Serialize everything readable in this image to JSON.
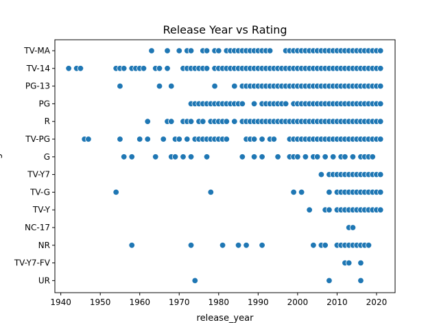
{
  "chart_data": {
    "type": "scatter",
    "title": "Release Year vs Rating",
    "xlabel": "release_year",
    "ylabel": "rating",
    "xlim": [
      1938.5,
      2024.7
    ],
    "xticks": [
      1940,
      1950,
      1960,
      1970,
      1980,
      1990,
      2000,
      2010,
      2020
    ],
    "categories": [
      "TV-MA",
      "TV-14",
      "PG-13",
      "PG",
      "R",
      "TV-PG",
      "G",
      "TV-Y7",
      "TV-G",
      "TV-Y",
      "NC-17",
      "NR",
      "TV-Y7-FV",
      "UR"
    ],
    "marker_color": "#1f77b4",
    "grid": false,
    "legend": "none",
    "points": {
      "TV-MA": [
        1963,
        1967,
        1970,
        1972,
        1973,
        1976,
        1977,
        1979,
        1980,
        1982,
        1983,
        1984,
        1985,
        1986,
        1987,
        1988,
        1989,
        1990,
        1991,
        1992,
        1993,
        1997,
        1998,
        1999,
        2000,
        2001,
        2002,
        2003,
        2004,
        2005,
        2006,
        2007,
        2008,
        2009,
        2010,
        2011,
        2012,
        2013,
        2014,
        2015,
        2016,
        2017,
        2018,
        2019,
        2020,
        2021
      ],
      "TV-14": [
        1942,
        1944,
        1945,
        1954,
        1955,
        1956,
        1958,
        1959,
        1960,
        1961,
        1964,
        1965,
        1967,
        1971,
        1972,
        1973,
        1974,
        1975,
        1976,
        1977,
        1979,
        1980,
        1981,
        1982,
        1983,
        1984,
        1985,
        1986,
        1987,
        1988,
        1989,
        1990,
        1991,
        1992,
        1993,
        1994,
        1995,
        1996,
        1997,
        1998,
        1999,
        2000,
        2001,
        2002,
        2003,
        2004,
        2005,
        2006,
        2007,
        2008,
        2009,
        2010,
        2011,
        2012,
        2013,
        2014,
        2015,
        2016,
        2017,
        2018,
        2019,
        2020,
        2021
      ],
      "PG-13": [
        1955,
        1965,
        1968,
        1979,
        1984,
        1986,
        1987,
        1988,
        1989,
        1990,
        1991,
        1992,
        1993,
        1994,
        1995,
        1996,
        1997,
        1998,
        1999,
        2000,
        2001,
        2002,
        2003,
        2004,
        2005,
        2006,
        2007,
        2008,
        2009,
        2010,
        2011,
        2012,
        2013,
        2014,
        2015,
        2016,
        2017,
        2018,
        2019,
        2020,
        2021
      ],
      "PG": [
        1973,
        1974,
        1975,
        1976,
        1977,
        1978,
        1979,
        1980,
        1981,
        1982,
        1983,
        1984,
        1985,
        1986,
        1989,
        1991,
        1992,
        1993,
        1994,
        1995,
        1996,
        1997,
        1999,
        2000,
        2001,
        2002,
        2003,
        2004,
        2005,
        2006,
        2007,
        2008,
        2009,
        2010,
        2011,
        2012,
        2013,
        2014,
        2015,
        2016,
        2017,
        2018,
        2019,
        2020,
        2021
      ],
      "R": [
        1962,
        1967,
        1968,
        1971,
        1972,
        1973,
        1975,
        1976,
        1978,
        1979,
        1980,
        1981,
        1982,
        1984,
        1986,
        1987,
        1988,
        1989,
        1990,
        1991,
        1992,
        1993,
        1994,
        1995,
        1996,
        1997,
        1998,
        1999,
        2000,
        2001,
        2002,
        2003,
        2004,
        2005,
        2006,
        2007,
        2008,
        2009,
        2010,
        2011,
        2012,
        2013,
        2014,
        2015,
        2016,
        2017,
        2018,
        2019,
        2020,
        2021
      ],
      "TV-PG": [
        1946,
        1947,
        1955,
        1960,
        1962,
        1966,
        1969,
        1970,
        1972,
        1974,
        1975,
        1976,
        1977,
        1978,
        1979,
        1980,
        1981,
        1982,
        1987,
        1988,
        1989,
        1991,
        1993,
        1994,
        1998,
        1999,
        2000,
        2001,
        2002,
        2003,
        2004,
        2005,
        2006,
        2007,
        2008,
        2009,
        2010,
        2011,
        2012,
        2013,
        2014,
        2015,
        2016,
        2017,
        2018,
        2019,
        2020,
        2021
      ],
      "G": [
        1956,
        1958,
        1964,
        1968,
        1969,
        1971,
        1973,
        1977,
        1986,
        1989,
        1991,
        1995,
        1998,
        1999,
        2000,
        2002,
        2004,
        2005,
        2007,
        2009,
        2011,
        2012,
        2014,
        2016,
        2017,
        2018,
        2019
      ],
      "TV-Y7": [
        2006,
        2008,
        2009,
        2010,
        2011,
        2012,
        2013,
        2014,
        2015,
        2016,
        2017,
        2018,
        2019,
        2020,
        2021
      ],
      "TV-G": [
        1954,
        1978,
        1999,
        2001,
        2008,
        2010,
        2011,
        2012,
        2013,
        2014,
        2015,
        2016,
        2017,
        2018,
        2019,
        2020,
        2021
      ],
      "TV-Y": [
        2003,
        2007,
        2008,
        2010,
        2011,
        2012,
        2013,
        2014,
        2015,
        2016,
        2017,
        2018,
        2019,
        2020,
        2021
      ],
      "NC-17": [
        2013,
        2014
      ],
      "NR": [
        1958,
        1973,
        1981,
        1985,
        1987,
        1991,
        2004,
        2006,
        2007,
        2010,
        2011,
        2012,
        2013,
        2014,
        2015,
        2016,
        2017,
        2018
      ],
      "TV-Y7-FV": [
        2012,
        2013,
        2016
      ],
      "UR": [
        1974,
        2008,
        2016
      ]
    }
  }
}
